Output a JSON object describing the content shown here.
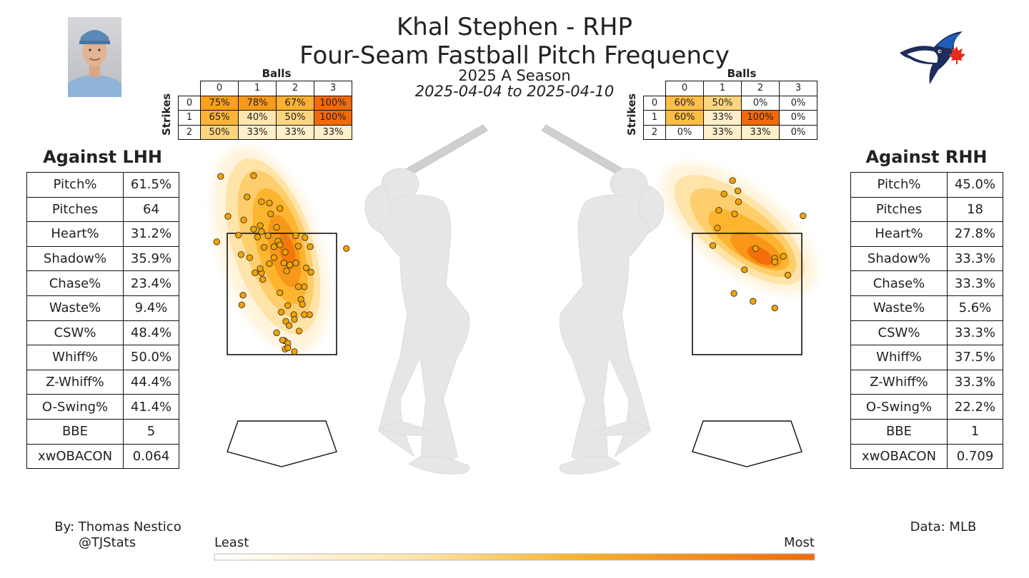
{
  "header": {
    "title_line1": "Khal Stephen - RHP",
    "title_line2": "Four-Seam Fastball Pitch Frequency",
    "season": "2025 A Season",
    "date_range": "2025-04-04 to 2025-04-10"
  },
  "colors": {
    "kde_low": "#fff3d6",
    "kde_mid": "#fdb834",
    "kde_high": "#f26a0a",
    "pitch_dot": "#f5a300",
    "silhouette": "#e6e6e6"
  },
  "chart_data": [
    {
      "type": "table",
      "name": "lhh_count_table",
      "column_header": "Balls",
      "row_header": "Strikes",
      "columns": [
        "0",
        "1",
        "2",
        "3"
      ],
      "rows": [
        "0",
        "1",
        "2"
      ],
      "values": [
        [
          "75%",
          "78%",
          "67%",
          "100%"
        ],
        [
          "65%",
          "40%",
          "50%",
          "100%"
        ],
        [
          "50%",
          "33%",
          "33%",
          "33%"
        ]
      ],
      "numeric": [
        [
          75,
          78,
          67,
          100
        ],
        [
          65,
          40,
          50,
          100
        ],
        [
          50,
          33,
          33,
          33
        ]
      ]
    },
    {
      "type": "table",
      "name": "rhh_count_table",
      "column_header": "Balls",
      "row_header": "Strikes",
      "columns": [
        "0",
        "1",
        "2",
        "3"
      ],
      "rows": [
        "0",
        "1",
        "2"
      ],
      "values": [
        [
          "60%",
          "50%",
          "0%",
          "0%"
        ],
        [
          "60%",
          "33%",
          "100%",
          "0%"
        ],
        [
          "0%",
          "33%",
          "33%",
          "0%"
        ]
      ],
      "numeric": [
        [
          60,
          50,
          0,
          0
        ],
        [
          60,
          33,
          100,
          0
        ],
        [
          0,
          33,
          33,
          0
        ]
      ]
    },
    {
      "type": "scatter",
      "name": "lhh_pitch_locations",
      "x": [
        -0.93,
        -0.43,
        -0.53,
        -0.31,
        -0.19,
        -0.03,
        -0.82,
        -0.17,
        -0.58,
        -0.33,
        -0.08,
        -0.43,
        -0.31,
        -0.66,
        -0.21,
        -0.37,
        0.21,
        0.35,
        -0.06,
        -0.99,
        -0.03,
        -0.27,
        -0.12,
        -0.12,
        0.25,
        0.43,
        0.98,
        -0.62,
        -0.49,
        0.03,
        0.21,
        -0.19,
        0.37,
        0.44,
        -0.31,
        -0.41,
        -0.29,
        -0.59,
        0.29,
        -0.61,
        0.09,
        0.31,
        0.42,
        0.34,
        0.18,
        -0.01,
        0.19,
        0.06,
        0.11,
        -0.08,
        0.26,
        0.04,
        0.09,
        0.05,
        0.19,
        0.09,
        -0.03,
        0.34,
        0.07,
        -0.33,
        0.01,
        0.25,
        0.12,
        0.05
      ],
      "y": [
        4.44,
        4.45,
        4.1,
        4.02,
        4.0,
        3.91,
        3.78,
        3.82,
        3.72,
        3.63,
        3.6,
        3.57,
        3.53,
        3.47,
        3.46,
        3.44,
        3.46,
        3.43,
        3.37,
        3.36,
        3.31,
        3.27,
        3.28,
        3.1,
        3.29,
        3.28,
        3.25,
        3.15,
        3.1,
        3.01,
        3.01,
        3.0,
        2.93,
        2.86,
        2.85,
        2.85,
        2.74,
        2.48,
        2.41,
        2.32,
        2.31,
        2.33,
        2.16,
        2.16,
        2.16,
        2.2,
        2.08,
        2.05,
        1.98,
        1.86,
        1.89,
        1.73,
        1.69,
        1.59,
        1.55,
        1.61,
        2.52,
        2.62,
        2.88,
        2.92,
        1.74,
        2.62,
        2.98,
        3.19
      ],
      "xlim": [
        -1.5,
        1.5
      ],
      "ylim": [
        0,
        5
      ]
    },
    {
      "type": "scatter",
      "name": "rhh_pitch_locations",
      "x": [
        -0.22,
        -0.14,
        -0.35,
        -0.13,
        -0.43,
        -0.19,
        0.85,
        -0.45,
        -0.52,
        0.13,
        0.55,
        0.42,
        0.42,
        -0.04,
        0.62,
        0.09,
        0.42,
        -0.2
      ],
      "y": [
        4.37,
        4.2,
        4.15,
        4.02,
        3.88,
        3.82,
        3.79,
        3.59,
        3.3,
        3.25,
        3.12,
        3.09,
        3.03,
        2.9,
        2.81,
        2.38,
        2.27,
        2.51
      ],
      "xlim": [
        -1.5,
        1.5
      ],
      "ylim": [
        0,
        5
      ]
    }
  ],
  "lhh": {
    "title": "Against LHH",
    "stats": [
      {
        "k": "Pitch%",
        "v": "61.5%"
      },
      {
        "k": "Pitches",
        "v": "64"
      },
      {
        "k": "Heart%",
        "v": "31.2%"
      },
      {
        "k": "Shadow%",
        "v": "35.9%"
      },
      {
        "k": "Chase%",
        "v": "23.4%"
      },
      {
        "k": "Waste%",
        "v": "9.4%"
      },
      {
        "k": "CSW%",
        "v": "48.4%"
      },
      {
        "k": "Whiff%",
        "v": "50.0%"
      },
      {
        "k": "Z-Whiff%",
        "v": "44.4%"
      },
      {
        "k": "O-Swing%",
        "v": "41.4%"
      },
      {
        "k": "BBE",
        "v": "5"
      },
      {
        "k": "xwOBACON",
        "v": "0.064"
      }
    ]
  },
  "rhh": {
    "title": "Against RHH",
    "stats": [
      {
        "k": "Pitch%",
        "v": "45.0%"
      },
      {
        "k": "Pitches",
        "v": "18"
      },
      {
        "k": "Heart%",
        "v": "27.8%"
      },
      {
        "k": "Shadow%",
        "v": "33.3%"
      },
      {
        "k": "Chase%",
        "v": "33.3%"
      },
      {
        "k": "Waste%",
        "v": "5.6%"
      },
      {
        "k": "CSW%",
        "v": "33.3%"
      },
      {
        "k": "Whiff%",
        "v": "37.5%"
      },
      {
        "k": "Z-Whiff%",
        "v": "33.3%"
      },
      {
        "k": "O-Swing%",
        "v": "22.2%"
      },
      {
        "k": "BBE",
        "v": "1"
      },
      {
        "k": "xwOBACON",
        "v": "0.709"
      }
    ]
  },
  "legend": {
    "least": "Least",
    "most": "Most"
  },
  "footer": {
    "author": "By: Thomas Nestico",
    "handle": "@TJStats",
    "source": "Data: MLB"
  }
}
